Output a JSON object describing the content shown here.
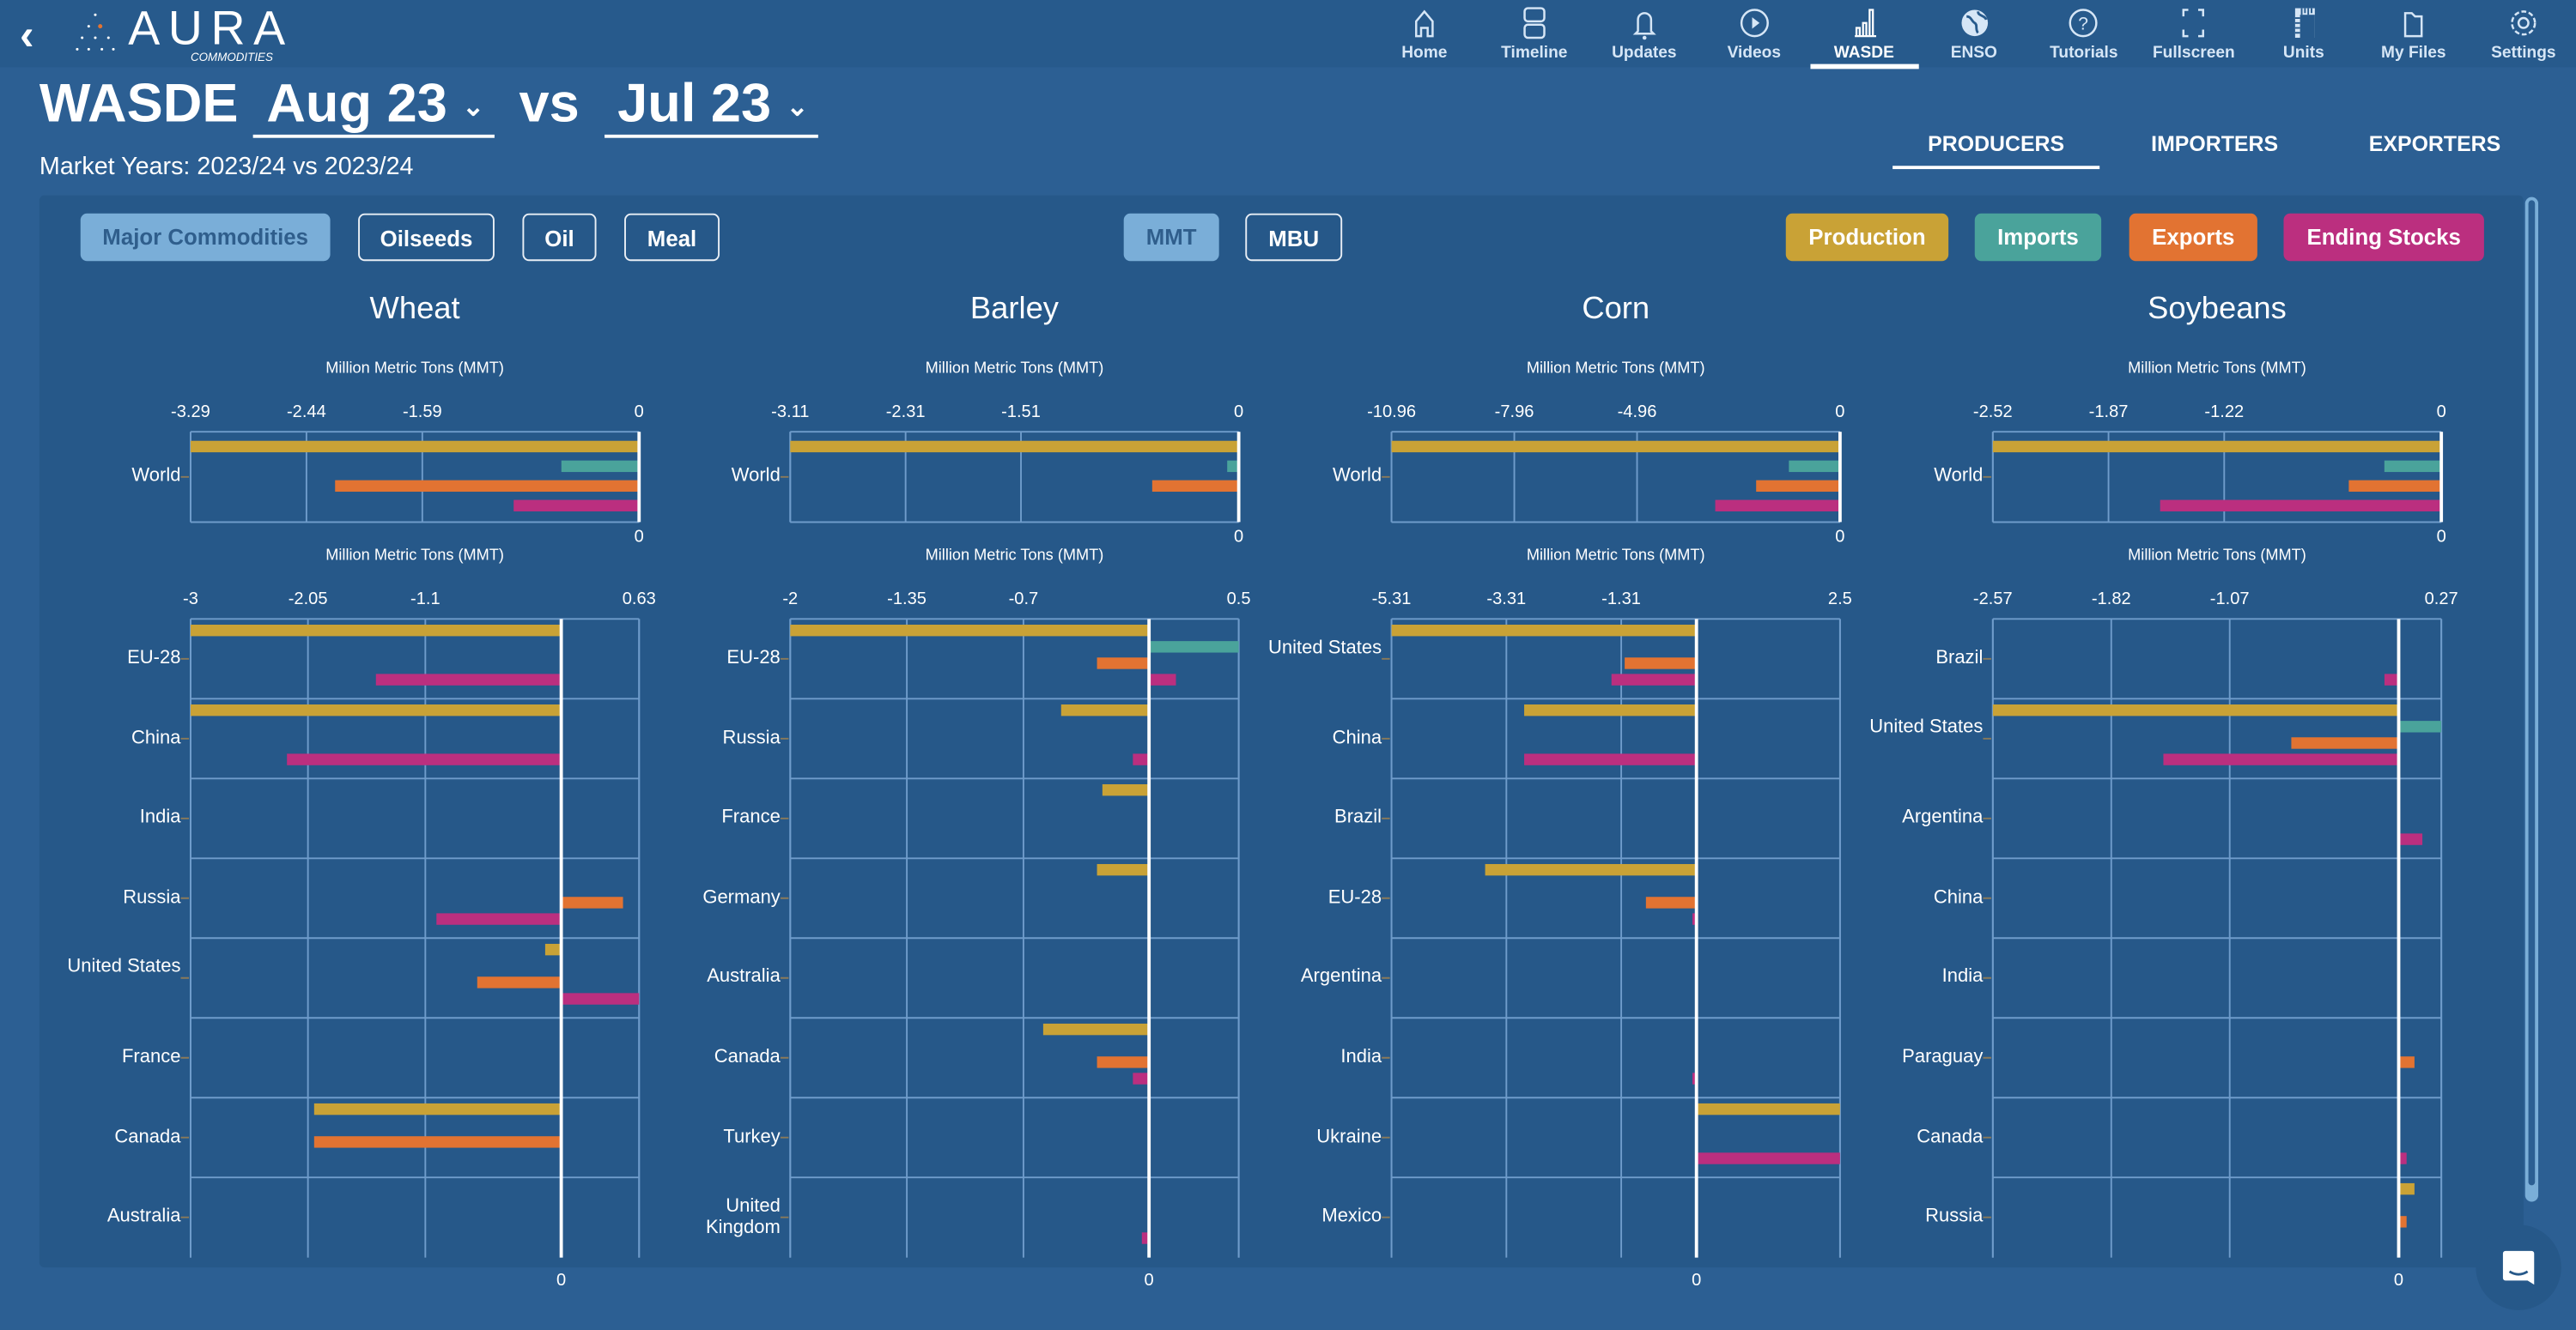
{
  "header": {
    "back_icon": "chevron-left-icon",
    "logo_text": "AURA",
    "logo_sub": "COMMODITIES",
    "nav": [
      {
        "label": "Home",
        "icon": "home-icon"
      },
      {
        "label": "Timeline",
        "icon": "timeline-icon"
      },
      {
        "label": "Updates",
        "icon": "bell-icon"
      },
      {
        "label": "Videos",
        "icon": "play-circle-icon"
      },
      {
        "label": "WASDE",
        "icon": "bar-chart-icon",
        "active": true
      },
      {
        "label": "ENSO",
        "icon": "globe-icon"
      },
      {
        "label": "Tutorials",
        "icon": "help-circle-icon"
      },
      {
        "label": "Fullscreen",
        "icon": "fullscreen-icon"
      },
      {
        "label": "Units",
        "icon": "ruler-icon"
      },
      {
        "label": "My Files",
        "icon": "folder-icon"
      },
      {
        "label": "Settings",
        "icon": "gear-icon"
      }
    ]
  },
  "page": {
    "title": "WASDE",
    "report_selected": "Aug 23",
    "vs": "vs",
    "compare_selected": "Jul 23",
    "market_years": "Market Years: 2023/24 vs 2023/24",
    "tabs": [
      {
        "label": "PRODUCERS",
        "active": true
      },
      {
        "label": "IMPORTERS"
      },
      {
        "label": "EXPORTERS"
      }
    ]
  },
  "filters": {
    "groups": [
      {
        "label": "Major Commodities",
        "active": true
      },
      {
        "label": "Oilseeds"
      },
      {
        "label": "Oil"
      },
      {
        "label": "Meal"
      }
    ],
    "units": [
      {
        "label": "MMT",
        "active": true
      },
      {
        "label": "MBU"
      }
    ],
    "series": [
      {
        "label": "Production",
        "color": "#c9a236"
      },
      {
        "label": "Imports",
        "color": "#4aa39b"
      },
      {
        "label": "Exports",
        "color": "#e27332"
      },
      {
        "label": "Ending Stocks",
        "color": "#bb2f7f"
      }
    ]
  },
  "chart_data": [
    {
      "type": "bar",
      "orientation": "horizontal",
      "title": "Wheat",
      "xlabel": "Million Metric Tons (MMT)",
      "xlim": [
        -3.29,
        0
      ],
      "ticks": [
        "-3.29",
        "-2.44",
        "-1.59",
        "0"
      ],
      "zero_label": "0",
      "grid": true,
      "categories": [
        "World"
      ],
      "series": [
        {
          "name": "Production",
          "values": [
            -3.29
          ]
        },
        {
          "name": "Imports",
          "values": [
            -0.57
          ]
        },
        {
          "name": "Exports",
          "values": [
            -2.23
          ]
        },
        {
          "name": "Ending Stocks",
          "values": [
            -0.92
          ]
        }
      ]
    },
    {
      "type": "bar",
      "orientation": "horizontal",
      "title": "Wheat",
      "xlabel": "Million Metric Tons (MMT)",
      "xlim": [
        -3,
        0.63
      ],
      "ticks": [
        "-3",
        "-2.05",
        "-1.1",
        "0.63"
      ],
      "zero_label": "0",
      "grid": true,
      "categories": [
        "EU-28",
        "China",
        "India",
        "Russia",
        "United States",
        "France",
        "Canada",
        "Australia"
      ],
      "series": [
        {
          "name": "Production",
          "values": [
            -3.0,
            -3.0,
            null,
            null,
            -0.13,
            null,
            -2.0,
            null
          ]
        },
        {
          "name": "Imports",
          "values": [
            null,
            null,
            null,
            null,
            null,
            null,
            null,
            null
          ]
        },
        {
          "name": "Exports",
          "values": [
            null,
            null,
            null,
            0.5,
            -0.68,
            null,
            -2.0,
            null
          ]
        },
        {
          "name": "Ending Stocks",
          "values": [
            -1.5,
            -2.22,
            null,
            -1.01,
            0.63,
            null,
            null,
            null
          ]
        }
      ]
    },
    {
      "type": "bar",
      "orientation": "horizontal",
      "title": "Barley",
      "xlabel": "Million Metric Tons (MMT)",
      "xlim": [
        -3.11,
        0
      ],
      "ticks": [
        "-3.11",
        "-2.31",
        "-1.51",
        "0"
      ],
      "zero_label": "0",
      "grid": true,
      "categories": [
        "World"
      ],
      "series": [
        {
          "name": "Production",
          "values": [
            -3.11
          ]
        },
        {
          "name": "Imports",
          "values": [
            -0.08
          ]
        },
        {
          "name": "Exports",
          "values": [
            -0.6
          ]
        },
        {
          "name": "Ending Stocks",
          "values": [
            null
          ]
        }
      ]
    },
    {
      "type": "bar",
      "orientation": "horizontal",
      "title": "Barley",
      "xlabel": "Million Metric Tons (MMT)",
      "xlim": [
        -2,
        0.5
      ],
      "ticks": [
        "-2",
        "-1.35",
        "-0.7",
        "0.5"
      ],
      "zero_label": "0",
      "grid": true,
      "categories": [
        "EU-28",
        "Russia",
        "France",
        "Germany",
        "Australia",
        "Canada",
        "Turkey",
        "United Kingdom"
      ],
      "series": [
        {
          "name": "Production",
          "values": [
            -2.0,
            -0.49,
            -0.26,
            -0.29,
            null,
            -0.59,
            null,
            null
          ]
        },
        {
          "name": "Imports",
          "values": [
            0.5,
            null,
            null,
            null,
            null,
            null,
            null,
            null
          ]
        },
        {
          "name": "Exports",
          "values": [
            -0.29,
            null,
            null,
            null,
            null,
            -0.29,
            null,
            null
          ]
        },
        {
          "name": "Ending Stocks",
          "values": [
            0.15,
            -0.09,
            null,
            null,
            null,
            -0.09,
            null,
            -0.04
          ]
        }
      ]
    },
    {
      "type": "bar",
      "orientation": "horizontal",
      "title": "Corn",
      "xlabel": "Million Metric Tons (MMT)",
      "xlim": [
        -10.96,
        0
      ],
      "ticks": [
        "-10.96",
        "-7.96",
        "-4.96",
        "0"
      ],
      "zero_label": "0",
      "grid": true,
      "categories": [
        "World"
      ],
      "series": [
        {
          "name": "Production",
          "values": [
            -10.96
          ]
        },
        {
          "name": "Imports",
          "values": [
            -1.25
          ]
        },
        {
          "name": "Exports",
          "values": [
            -2.05
          ]
        },
        {
          "name": "Ending Stocks",
          "values": [
            -3.05
          ]
        }
      ]
    },
    {
      "type": "bar",
      "orientation": "horizontal",
      "title": "Corn",
      "xlabel": "Million Metric Tons (MMT)",
      "xlim": [
        -5.31,
        2.5
      ],
      "ticks": [
        "-5.31",
        "-3.31",
        "-1.31",
        "2.5"
      ],
      "zero_label": "0",
      "grid": true,
      "categories": [
        "United States",
        "China",
        "Brazil",
        "EU-28",
        "Argentina",
        "India",
        "Ukraine",
        "Mexico"
      ],
      "series": [
        {
          "name": "Production",
          "values": [
            -5.31,
            -3.0,
            null,
            -3.68,
            null,
            null,
            2.5,
            null
          ]
        },
        {
          "name": "Imports",
          "values": [
            null,
            null,
            null,
            null,
            null,
            null,
            null,
            null
          ]
        },
        {
          "name": "Exports",
          "values": [
            -1.25,
            null,
            null,
            -0.88,
            null,
            null,
            null,
            null
          ]
        },
        {
          "name": "Ending Stocks",
          "values": [
            -1.48,
            -3.0,
            null,
            -0.07,
            null,
            -0.07,
            2.5,
            null
          ]
        }
      ]
    },
    {
      "type": "bar",
      "orientation": "horizontal",
      "title": "Soybeans",
      "xlabel": "Million Metric Tons (MMT)",
      "xlim": [
        -2.52,
        0
      ],
      "ticks": [
        "-2.52",
        "-1.87",
        "-1.22",
        "0"
      ],
      "zero_label": "0",
      "grid": true,
      "categories": [
        "World"
      ],
      "series": [
        {
          "name": "Production",
          "values": [
            -2.52
          ]
        },
        {
          "name": "Imports",
          "values": [
            -0.32
          ]
        },
        {
          "name": "Exports",
          "values": [
            -0.52
          ]
        },
        {
          "name": "Ending Stocks",
          "values": [
            -1.58
          ]
        }
      ]
    },
    {
      "type": "bar",
      "orientation": "horizontal",
      "title": "Soybeans",
      "xlabel": "Million Metric Tons (MMT)",
      "xlim": [
        -2.57,
        0.27
      ],
      "ticks": [
        "-2.57",
        "-1.82",
        "-1.07",
        "0.27"
      ],
      "zero_label": "0",
      "grid": true,
      "categories": [
        "Brazil",
        "United States",
        "Argentina",
        "China",
        "India",
        "Paraguay",
        "Canada",
        "Russia"
      ],
      "series": [
        {
          "name": "Production",
          "values": [
            null,
            -2.57,
            null,
            null,
            null,
            null,
            null,
            0.1
          ]
        },
        {
          "name": "Imports",
          "values": [
            null,
            0.27,
            null,
            null,
            null,
            null,
            null,
            null
          ]
        },
        {
          "name": "Exports",
          "values": [
            null,
            -0.68,
            null,
            null,
            null,
            0.1,
            null,
            0.05
          ]
        },
        {
          "name": "Ending Stocks",
          "values": [
            -0.09,
            -1.49,
            0.15,
            null,
            null,
            null,
            0.05,
            null
          ]
        }
      ]
    }
  ],
  "chat": {
    "icon": "chat-icon"
  }
}
